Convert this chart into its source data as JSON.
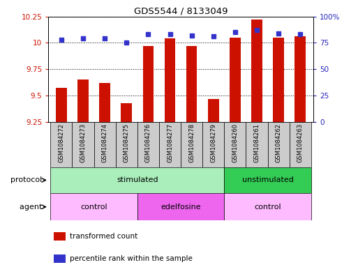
{
  "title": "GDS5544 / 8133049",
  "samples": [
    "GSM1084272",
    "GSM1084273",
    "GSM1084274",
    "GSM1084275",
    "GSM1084276",
    "GSM1084277",
    "GSM1084278",
    "GSM1084279",
    "GSM1084260",
    "GSM1084261",
    "GSM1084262",
    "GSM1084263"
  ],
  "bar_values": [
    9.57,
    9.65,
    9.62,
    9.43,
    9.97,
    10.04,
    9.97,
    9.47,
    10.05,
    10.22,
    10.05,
    10.06
  ],
  "dot_values": [
    78,
    79,
    79,
    75,
    83,
    83,
    82,
    81,
    85,
    87,
    84,
    83
  ],
  "bar_bottom": 9.25,
  "ylim_left": [
    9.25,
    10.25
  ],
  "ylim_right": [
    0,
    100
  ],
  "yticks_left": [
    9.25,
    9.5,
    9.75,
    10.0,
    10.25
  ],
  "ytick_labels_left": [
    "9.25",
    "9.5",
    "9.75",
    "10",
    "10.25"
  ],
  "yticks_right": [
    0,
    25,
    50,
    75,
    100
  ],
  "ytick_labels_right": [
    "0",
    "25",
    "50",
    "75",
    "100%"
  ],
  "bar_color": "#cc1100",
  "dot_color": "#3333cc",
  "protocol_groups": [
    {
      "label": "stimulated",
      "start": 0,
      "end": 7,
      "color": "#aaeebb"
    },
    {
      "label": "unstimulated",
      "start": 8,
      "end": 11,
      "color": "#33cc55"
    }
  ],
  "agent_groups": [
    {
      "label": "control",
      "start": 0,
      "end": 3,
      "color": "#ffbbff"
    },
    {
      "label": "edelfosine",
      "start": 4,
      "end": 7,
      "color": "#ee66ee"
    },
    {
      "label": "control",
      "start": 8,
      "end": 11,
      "color": "#ffbbff"
    }
  ],
  "sample_box_color": "#cccccc",
  "legend_bar_label": "transformed count",
  "legend_dot_label": "percentile rank within the sample",
  "protocol_label": "protocol",
  "agent_label": "agent"
}
